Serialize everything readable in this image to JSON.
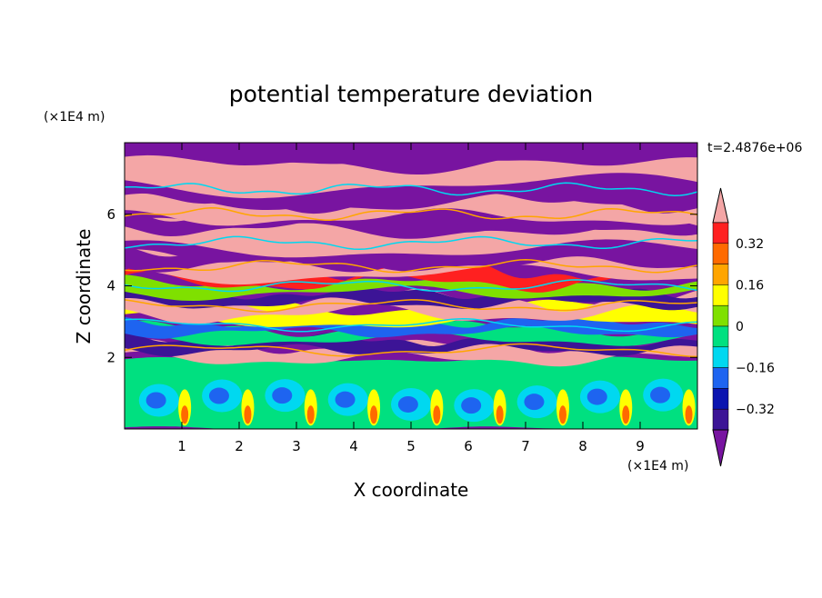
{
  "chart_data": {
    "type": "heatmap",
    "title": "potential temperature deviation",
    "xlabel": "X coordinate",
    "ylabel": "Z coordinate",
    "x_unit": "(×1E4 m)",
    "y_unit": "(×1E4 m)",
    "time_label": "t=2.4876e+06",
    "xlim": [
      0,
      10
    ],
    "ylim": [
      0,
      8
    ],
    "x_ticks": [
      1,
      2,
      3,
      4,
      5,
      6,
      7,
      8,
      9
    ],
    "y_ticks": [
      2,
      4,
      6
    ],
    "colorbar": {
      "levels": [
        -0.4,
        -0.32,
        -0.24,
        -0.16,
        -0.08,
        0,
        0.08,
        0.16,
        0.24,
        0.32,
        0.4
      ],
      "tick_labels": [
        "0.32",
        "0.16",
        "0",
        "−0.16",
        "−0.32"
      ],
      "tick_values": [
        0.32,
        0.16,
        0,
        -0.16,
        -0.32
      ],
      "bands_top_to_bottom": [
        {
          "range": "> 0.40",
          "color": "#F4A6A6"
        },
        {
          "range": "0.32 – 0.40",
          "color": "#FF2020"
        },
        {
          "range": "0.24 – 0.32",
          "color": "#FF6A00"
        },
        {
          "range": "0.16 – 0.24",
          "color": "#FFA500"
        },
        {
          "range": "0.08 – 0.16",
          "color": "#FFFF00"
        },
        {
          "range": "0 – 0.08",
          "color": "#7FE000"
        },
        {
          "range": "-0.08 – 0",
          "color": "#00E080"
        },
        {
          "range": "-0.16 – -0.08",
          "color": "#00D8F0"
        },
        {
          "range": "-0.24 – -0.16",
          "color": "#1E64F0"
        },
        {
          "range": "-0.32 – -0.24",
          "color": "#0A14B0"
        },
        {
          "range": "-0.40 – -0.32",
          "color": "#3C1496"
        },
        {
          "range": "< -0.40",
          "color": "#7814A0"
        }
      ]
    }
  }
}
